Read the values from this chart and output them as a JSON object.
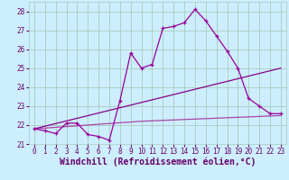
{
  "xlabel": "Windchill (Refroidissement éolien,°C)",
  "bg_color": "#cceeff",
  "grid_color": "#aaccbb",
  "line_color1": "#990099",
  "line_color2": "#880088",
  "line_color3": "#aa44aa",
  "x_ticks": [
    0,
    1,
    2,
    3,
    4,
    5,
    6,
    7,
    8,
    9,
    10,
    11,
    12,
    13,
    14,
    15,
    16,
    17,
    18,
    19,
    20,
    21,
    22,
    23
  ],
  "ylim": [
    21.0,
    28.5
  ],
  "yticks": [
    21,
    22,
    23,
    24,
    25,
    26,
    27,
    28
  ],
  "line1_x": [
    0,
    1,
    2,
    3,
    4,
    5,
    6,
    7,
    8,
    9,
    10,
    11,
    12,
    13,
    14,
    15,
    16,
    17,
    18,
    19,
    20,
    21,
    22,
    23
  ],
  "line1_y": [
    21.8,
    21.7,
    21.55,
    22.1,
    22.1,
    21.5,
    21.4,
    21.2,
    23.3,
    25.8,
    25.0,
    25.2,
    27.1,
    27.2,
    27.4,
    28.1,
    27.5,
    26.7,
    25.9,
    25.0,
    23.4,
    23.0,
    22.6,
    22.6
  ],
  "line2_x": [
    0,
    23
  ],
  "line2_y": [
    21.8,
    25.0
  ],
  "line3_x": [
    0,
    10,
    23
  ],
  "line3_y": [
    21.8,
    22.2,
    22.5
  ],
  "font_color": "#660066",
  "tick_fontsize": 5.5,
  "label_fontsize": 7.0
}
